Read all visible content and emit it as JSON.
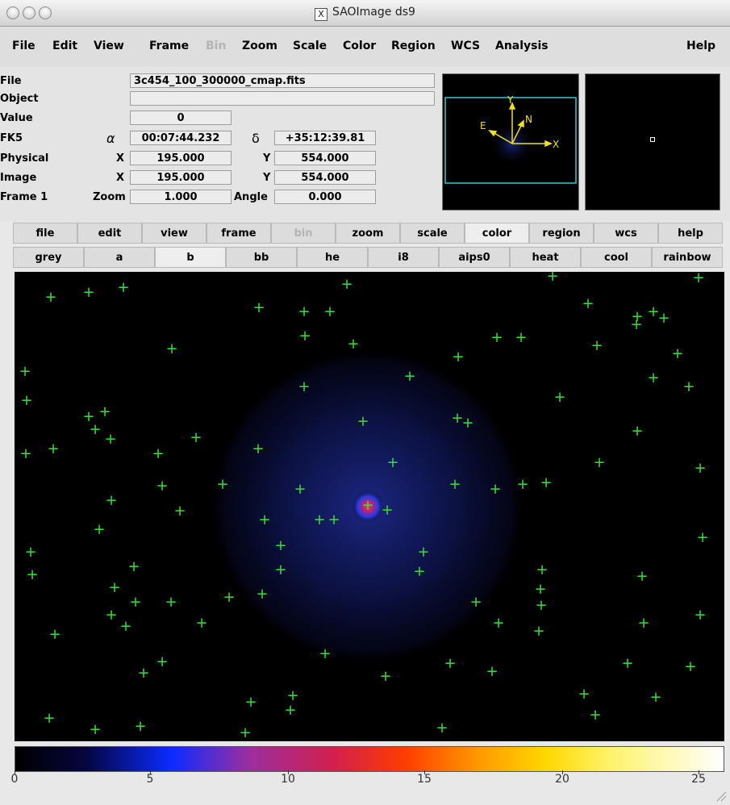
{
  "window": {
    "title": "SAOImage ds9"
  },
  "menubar": [
    "File",
    "Edit",
    "View",
    "Frame",
    "Bin",
    "Zoom",
    "Scale",
    "Color",
    "Region",
    "WCS",
    "Analysis",
    "Help"
  ],
  "menubar_disabled": [
    "Bin"
  ],
  "info": {
    "file_label": "File",
    "file_value": "3c454_100_300000_cmap.fits",
    "object_label": "Object",
    "object_value": "",
    "value_label": "Value",
    "value_value": "0",
    "fk5_label": "FK5",
    "alpha_symbol": "α",
    "alpha_value": "00:07:44.232",
    "delta_symbol": "δ",
    "delta_value": "+35:12:39.81",
    "physical_label": "Physical",
    "physical_x_label": "X",
    "physical_x": "195.000",
    "physical_y_label": "Y",
    "physical_y": "554.000",
    "image_label": "Image",
    "image_x_label": "X",
    "image_x": "195.000",
    "image_y_label": "Y",
    "image_y": "554.000",
    "frame_label": "Frame 1",
    "zoom_label": "Zoom",
    "zoom_value": "1.000",
    "angle_label": "Angle",
    "angle_value": "0.000"
  },
  "panner": {
    "labels": [
      "Y",
      "N",
      "E",
      "X"
    ]
  },
  "buttonbar": [
    "file",
    "edit",
    "view",
    "frame",
    "bin",
    "zoom",
    "scale",
    "color",
    "region",
    "wcs",
    "help"
  ],
  "buttonbar_disabled": [
    "bin"
  ],
  "buttonbar_active": "color",
  "colormap_buttons": [
    "grey",
    "a",
    "b",
    "bb",
    "he",
    "i8",
    "aips0",
    "heat",
    "cool",
    "rainbow"
  ],
  "colorbar": {
    "ticks": [
      "0",
      "5",
      "10",
      "15",
      "20",
      "25"
    ]
  },
  "colors": {
    "source_marker": "#3ddc3d",
    "panner_box": "#38c8c8",
    "compass": "#f0e020"
  }
}
